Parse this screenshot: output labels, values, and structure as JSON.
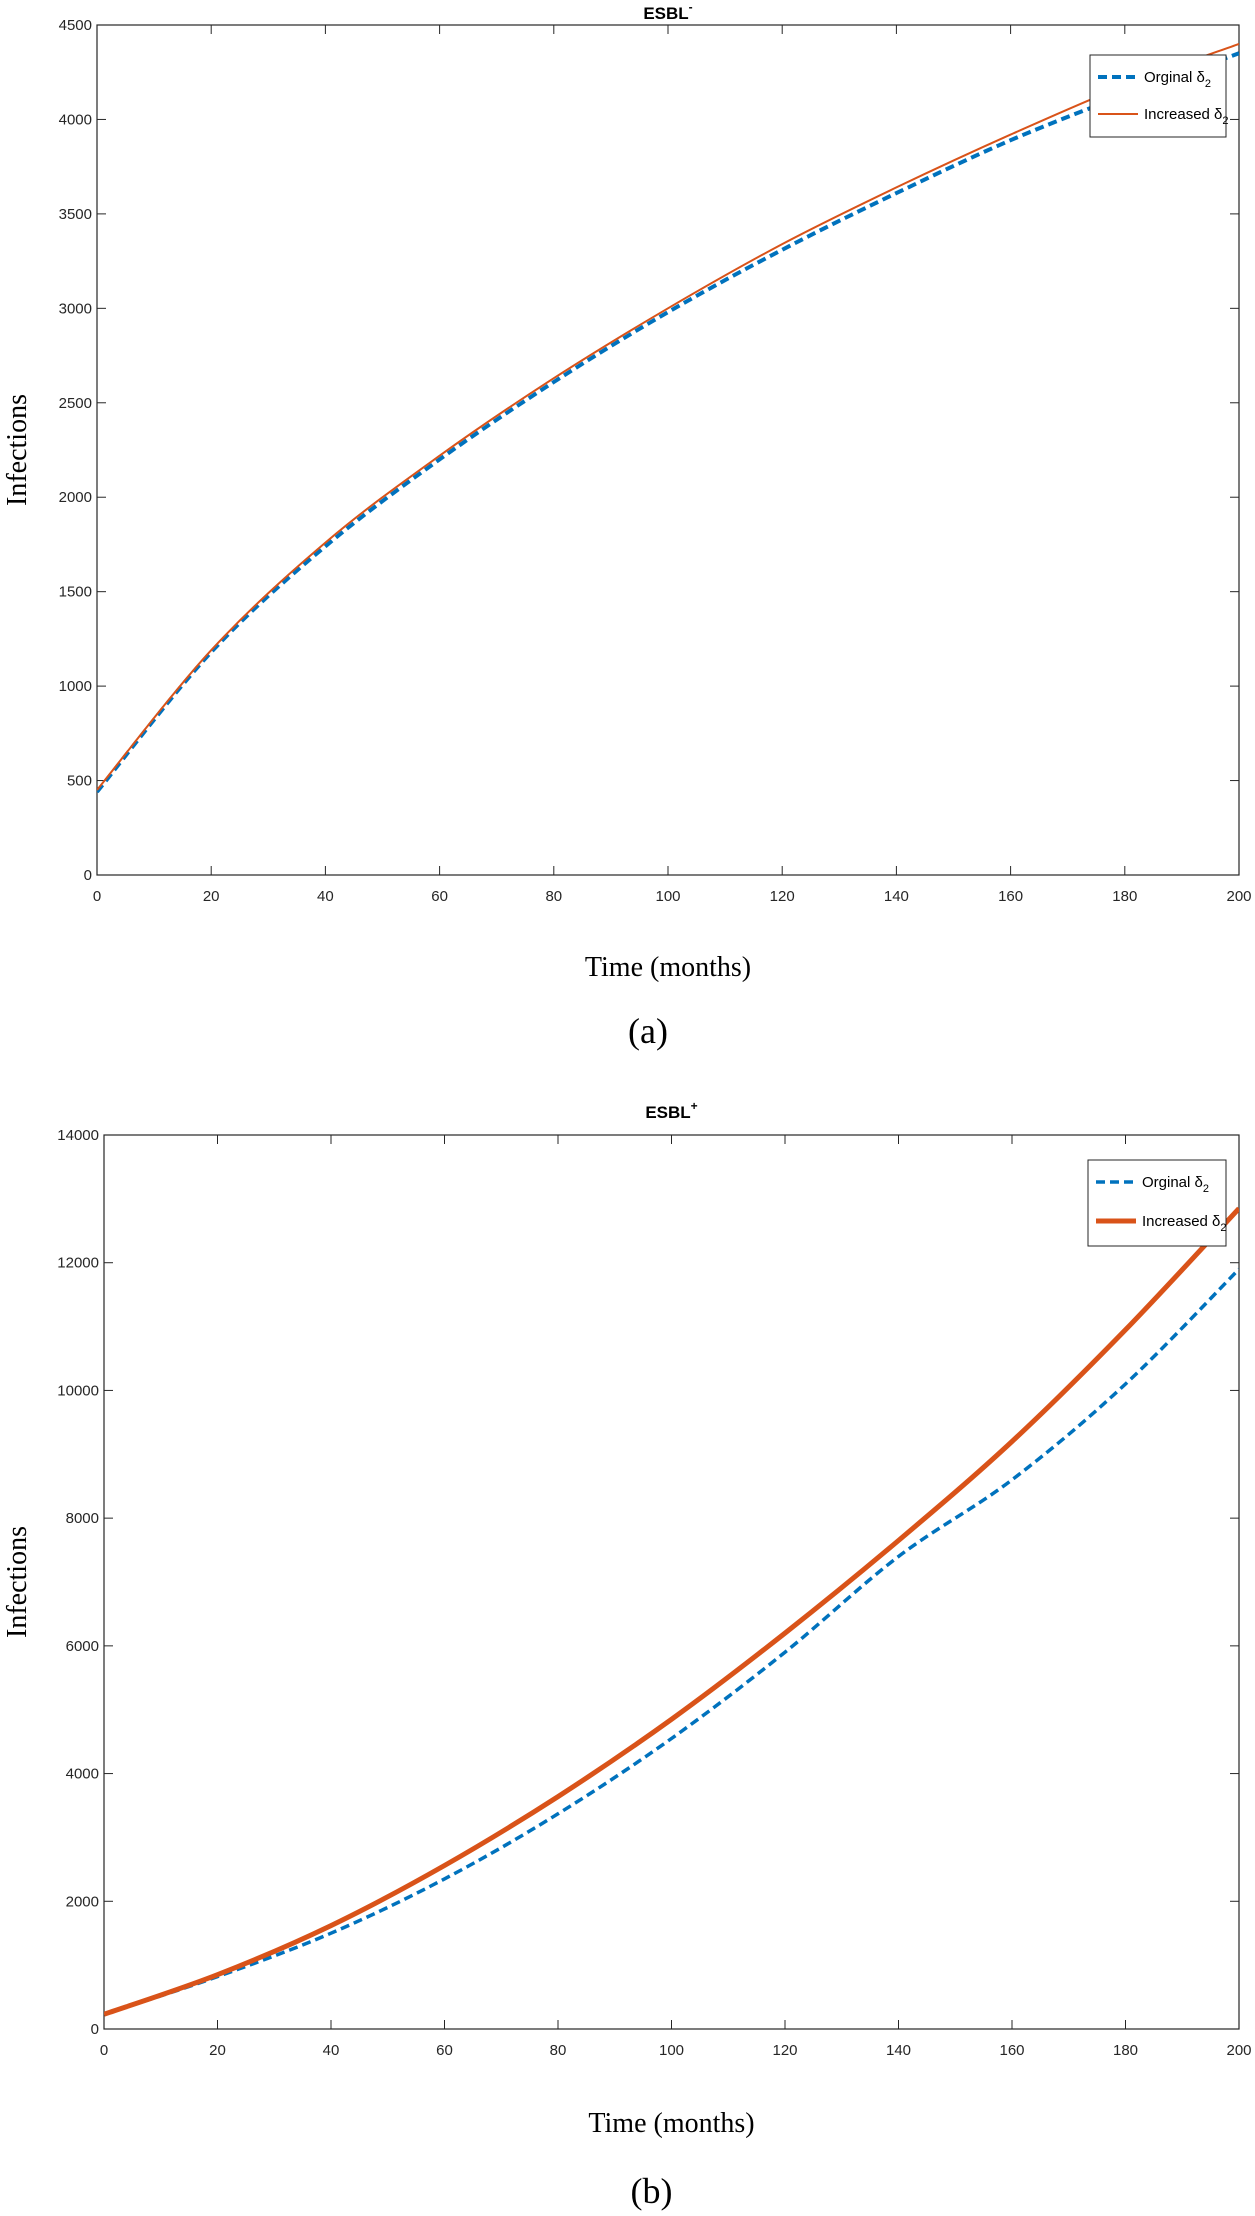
{
  "chart_data": [
    {
      "type": "line",
      "title": "ESBL",
      "title_superscript": "-",
      "xlabel": "Time (months)",
      "ylabel": "Infections",
      "caption": "(a)",
      "xlim": [
        0,
        200
      ],
      "ylim": [
        0,
        4500
      ],
      "xticks": [
        0,
        20,
        40,
        60,
        80,
        100,
        120,
        140,
        160,
        180,
        200
      ],
      "yticks": [
        0,
        500,
        1000,
        1500,
        2000,
        2500,
        3000,
        3500,
        4000,
        4500
      ],
      "grid": false,
      "legend_position": "top-right",
      "x": [
        0,
        20,
        40,
        60,
        80,
        100,
        120,
        140,
        160,
        180,
        200
      ],
      "series": [
        {
          "name": "Orginal δ",
          "name_subscript": "2",
          "style": "dashed",
          "color": "#0072BD",
          "width": 4,
          "values": [
            440,
            1180,
            1740,
            2200,
            2610,
            2980,
            3310,
            3610,
            3890,
            4130,
            4350
          ]
        },
        {
          "name": "Increased δ",
          "name_subscript": "2",
          "style": "solid",
          "color": "#D95319",
          "width": 2,
          "values": [
            450,
            1190,
            1760,
            2220,
            2630,
            3000,
            3340,
            3640,
            3920,
            4180,
            4400
          ]
        }
      ]
    },
    {
      "type": "line",
      "title": "ESBL",
      "title_superscript": "+",
      "xlabel": "Time (months)",
      "ylabel": "Infections",
      "caption": "(b)",
      "xlim": [
        0,
        200
      ],
      "ylim": [
        0,
        14000
      ],
      "xticks": [
        0,
        20,
        40,
        60,
        80,
        100,
        120,
        140,
        160,
        180,
        200
      ],
      "yticks": [
        0,
        2000,
        4000,
        6000,
        8000,
        10000,
        12000,
        14000
      ],
      "grid": false,
      "legend_position": "top-right",
      "x": [
        0,
        20,
        40,
        60,
        80,
        100,
        120,
        140,
        160,
        180,
        200
      ],
      "series": [
        {
          "name": "Orginal δ",
          "name_subscript": "2",
          "style": "dashed",
          "color": "#0072BD",
          "width": 3.5,
          "values": [
            230,
            820,
            1500,
            2350,
            3370,
            4550,
            5900,
            7400,
            8600,
            10100,
            11900
          ]
        },
        {
          "name": "Increased δ",
          "name_subscript": "2",
          "style": "solid",
          "color": "#D95319",
          "width": 5,
          "values": [
            230,
            850,
            1620,
            2560,
            3640,
            4850,
            6200,
            7650,
            9200,
            10950,
            12850
          ]
        }
      ]
    }
  ]
}
